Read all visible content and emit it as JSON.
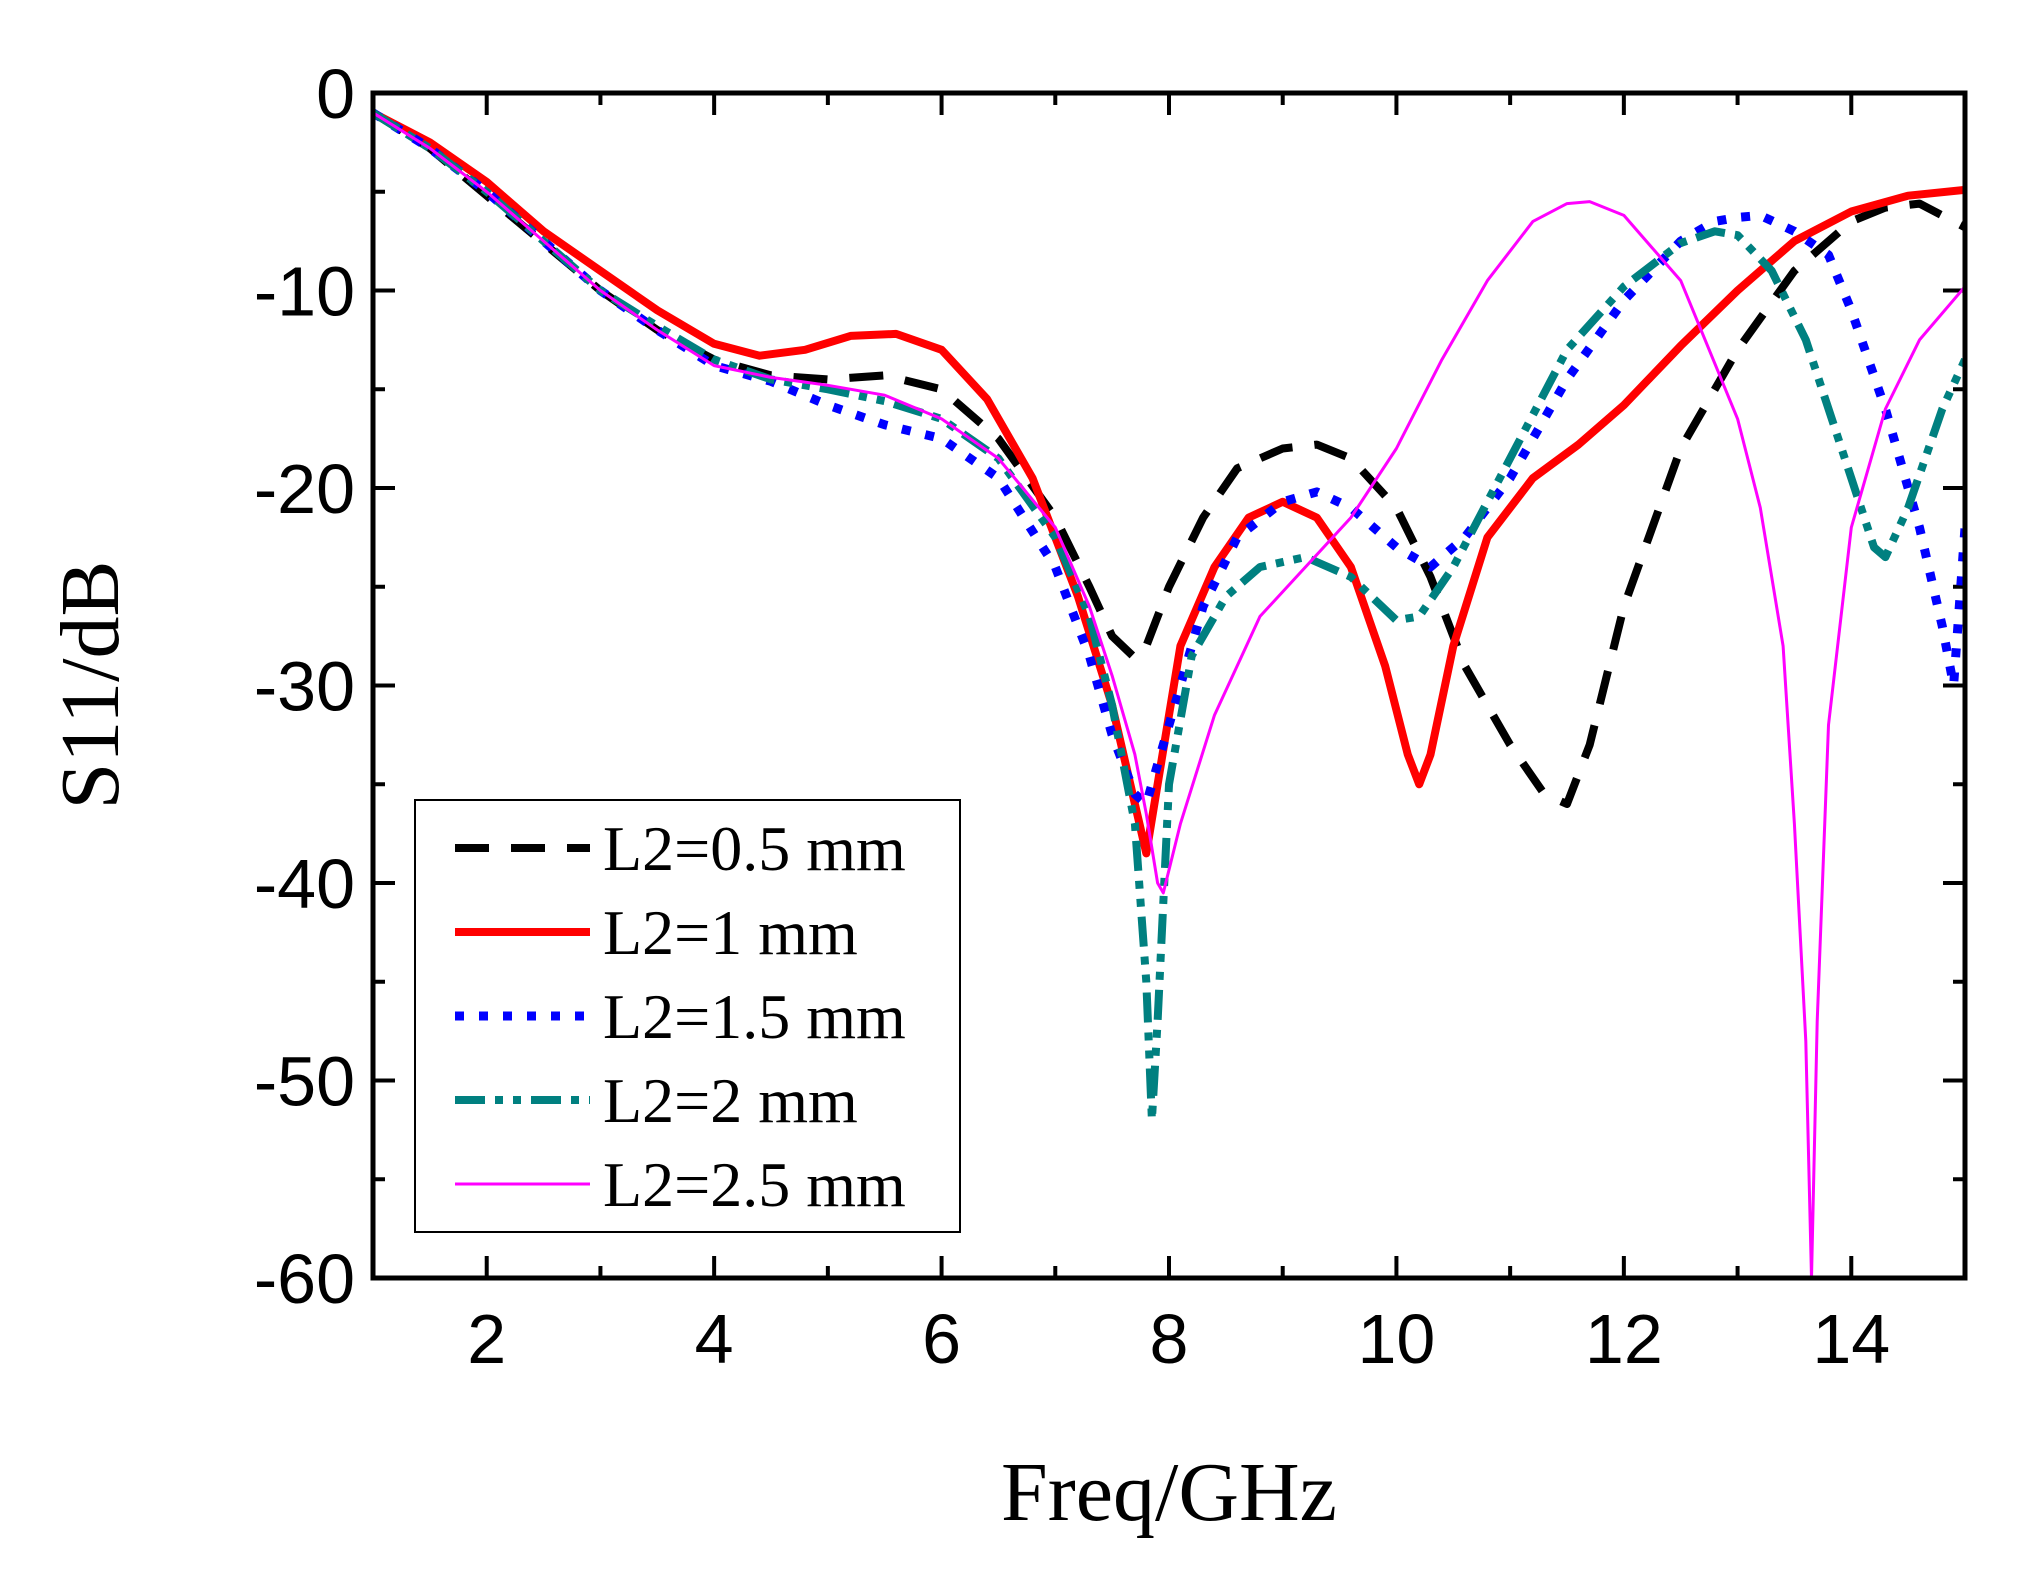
{
  "chart_data": {
    "type": "line",
    "xlabel": "Freq/GHz",
    "ylabel": "S11/dB",
    "xlim": [
      1,
      15
    ],
    "ylim": [
      -60,
      0
    ],
    "xticks": [
      2,
      4,
      6,
      8,
      10,
      12,
      14
    ],
    "yticks": [
      0,
      -10,
      -20,
      -30,
      -40,
      -50,
      -60
    ],
    "legend_position": "bottom-left",
    "series": [
      {
        "name": "L2=0.5 mm",
        "color": "#000000",
        "style": "dashed",
        "x": [
          1,
          1.5,
          2,
          2.5,
          3,
          3.5,
          4,
          4.5,
          5,
          5.5,
          6,
          6.5,
          7,
          7.3,
          7.5,
          7.7,
          7.8,
          8,
          8.3,
          8.6,
          9,
          9.3,
          9.6,
          10,
          10.3,
          10.6,
          11,
          11.3,
          11.5,
          11.7,
          12,
          12.5,
          13,
          13.5,
          14,
          14.3,
          14.6,
          15
        ],
        "y": [
          -1,
          -2.8,
          -5.2,
          -7.6,
          -10,
          -12,
          -13.5,
          -14.3,
          -14.5,
          -14.3,
          -15,
          -17.5,
          -21.5,
          -25,
          -27.5,
          -28.6,
          -28,
          -25,
          -21.5,
          -19,
          -18,
          -17.8,
          -18.5,
          -21,
          -24.5,
          -29,
          -33,
          -35.5,
          -36,
          -33,
          -26,
          -18,
          -13,
          -9,
          -6.5,
          -5.8,
          -5.6,
          -6.8
        ]
      },
      {
        "name": "L2=1 mm",
        "color": "#ff0000",
        "style": "solid",
        "x": [
          1,
          1.5,
          2,
          2.5,
          3,
          3.5,
          4,
          4.4,
          4.8,
          5.2,
          5.6,
          6,
          6.4,
          6.8,
          7.2,
          7.5,
          7.7,
          7.8,
          7.9,
          8.1,
          8.4,
          8.7,
          9,
          9.3,
          9.6,
          9.9,
          10.1,
          10.2,
          10.3,
          10.5,
          10.8,
          11.2,
          11.6,
          12,
          12.5,
          13,
          13.5,
          14,
          14.5,
          15
        ],
        "y": [
          -1,
          -2.5,
          -4.5,
          -7,
          -9,
          -11,
          -12.7,
          -13.3,
          -13,
          -12.3,
          -12.2,
          -13,
          -15.5,
          -19.5,
          -25.5,
          -31,
          -36,
          -38.5,
          -35,
          -28,
          -24,
          -21.5,
          -20.7,
          -21.5,
          -24,
          -29,
          -33.5,
          -35,
          -33.5,
          -28,
          -22.5,
          -19.5,
          -17.8,
          -15.8,
          -12.8,
          -10,
          -7.5,
          -6,
          -5.2,
          -4.9
        ]
      },
      {
        "name": "L2=1.5 mm",
        "color": "#0000ff",
        "style": "dotted",
        "x": [
          1,
          1.5,
          2,
          2.5,
          3,
          3.5,
          4,
          4.5,
          5,
          5.5,
          6,
          6.5,
          7,
          7.3,
          7.5,
          7.7,
          7.8,
          7.9,
          8.1,
          8.3,
          8.6,
          9,
          9.3,
          9.6,
          10,
          10.3,
          10.6,
          11,
          11.5,
          12,
          12.5,
          12.8,
          13,
          13.2,
          13.5,
          13.8,
          14,
          14.3,
          14.6,
          14.8,
          14.9,
          15
        ],
        "y": [
          -1,
          -2.8,
          -5,
          -7.5,
          -10,
          -12,
          -13.8,
          -14.6,
          -15.8,
          -16.8,
          -17.5,
          -19.5,
          -24,
          -28.5,
          -32.5,
          -35.5,
          -36,
          -34,
          -30,
          -26,
          -22.5,
          -20.7,
          -20.2,
          -21,
          -23,
          -24,
          -22.5,
          -19.5,
          -14.5,
          -10.5,
          -7.5,
          -6.5,
          -6.3,
          -6.2,
          -7,
          -8.2,
          -11,
          -16,
          -22,
          -27,
          -30,
          -22
        ]
      },
      {
        "name": "L2=2 mm",
        "color": "#008080",
        "style": "dash-dot-dot",
        "x": [
          1,
          1.5,
          2,
          2.5,
          3,
          3.5,
          4,
          4.5,
          5,
          5.5,
          6,
          6.5,
          7,
          7.3,
          7.5,
          7.7,
          7.8,
          7.85,
          7.9,
          8,
          8.2,
          8.5,
          8.8,
          9.2,
          9.6,
          10,
          10.2,
          10.5,
          11,
          11.5,
          12,
          12.5,
          12.8,
          13,
          13.3,
          13.6,
          14,
          14.2,
          14.3,
          14.5,
          14.8,
          15
        ],
        "y": [
          -1,
          -2.8,
          -5,
          -7.5,
          -10,
          -11.8,
          -13.5,
          -14.5,
          -15,
          -15.6,
          -16.5,
          -18.5,
          -22.5,
          -26.5,
          -31,
          -37,
          -45,
          -52,
          -47,
          -35,
          -28.5,
          -25.5,
          -24,
          -23.5,
          -24.5,
          -26.7,
          -26.5,
          -24,
          -18.5,
          -13,
          -9.8,
          -7.6,
          -7,
          -7.2,
          -9,
          -12.5,
          -19.5,
          -23,
          -23.5,
          -21,
          -16,
          -13.5
        ]
      },
      {
        "name": "L2=2.5 mm",
        "color": "#ff00ff",
        "style": "thin",
        "x": [
          1,
          1.5,
          2,
          2.5,
          3,
          3.5,
          4,
          4.5,
          5,
          5.5,
          6,
          6.5,
          7,
          7.3,
          7.5,
          7.7,
          7.8,
          7.9,
          7.95,
          8.1,
          8.4,
          8.8,
          9.2,
          9.6,
          10,
          10.4,
          10.8,
          11.2,
          11.5,
          11.7,
          12,
          12.5,
          13,
          13.2,
          13.4,
          13.5,
          13.6,
          13.65,
          13.7,
          13.8,
          14,
          14.3,
          14.6,
          15
        ],
        "y": [
          -1,
          -2.8,
          -5,
          -7.5,
          -10,
          -12,
          -13.8,
          -14.4,
          -14.8,
          -15.3,
          -16.5,
          -18.5,
          -22,
          -26,
          -29.5,
          -33.5,
          -36.5,
          -40,
          -40.5,
          -37,
          -31.5,
          -26.5,
          -24,
          -21.5,
          -18,
          -13.5,
          -9.5,
          -6.5,
          -5.6,
          -5.5,
          -6.2,
          -9.5,
          -16.5,
          -21,
          -28,
          -37,
          -48,
          -60,
          -47,
          -32,
          -22,
          -16,
          -12.5,
          -9.8
        ]
      }
    ]
  }
}
